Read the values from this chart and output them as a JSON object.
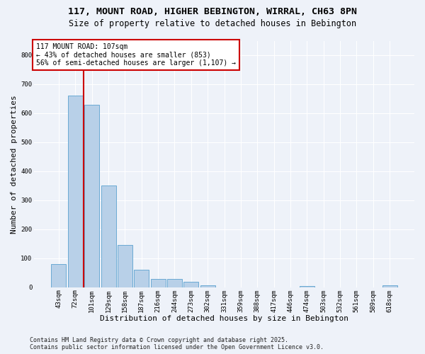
{
  "title_line1": "117, MOUNT ROAD, HIGHER BEBINGTON, WIRRAL, CH63 8PN",
  "title_line2": "Size of property relative to detached houses in Bebington",
  "xlabel": "Distribution of detached houses by size in Bebington",
  "ylabel": "Number of detached properties",
  "categories": [
    "43sqm",
    "72sqm",
    "101sqm",
    "129sqm",
    "158sqm",
    "187sqm",
    "216sqm",
    "244sqm",
    "273sqm",
    "302sqm",
    "331sqm",
    "359sqm",
    "388sqm",
    "417sqm",
    "446sqm",
    "474sqm",
    "503sqm",
    "532sqm",
    "561sqm",
    "589sqm",
    "618sqm"
  ],
  "values": [
    80,
    660,
    630,
    350,
    145,
    60,
    30,
    30,
    18,
    8,
    0,
    0,
    0,
    0,
    0,
    5,
    0,
    0,
    0,
    0,
    8
  ],
  "bar_color": "#b8d0e8",
  "bar_edge_color": "#6aaad4",
  "vline_x": 1.5,
  "annotation_text": "117 MOUNT ROAD: 107sqm\n← 43% of detached houses are smaller (853)\n56% of semi-detached houses are larger (1,107) →",
  "annotation_box_color": "#ffffff",
  "annotation_box_edge_color": "#cc0000",
  "vline_color": "#cc0000",
  "ylim": [
    0,
    850
  ],
  "yticks": [
    0,
    100,
    200,
    300,
    400,
    500,
    600,
    700,
    800
  ],
  "footer_line1": "Contains HM Land Registry data © Crown copyright and database right 2025.",
  "footer_line2": "Contains public sector information licensed under the Open Government Licence v3.0.",
  "bg_color": "#eef2f9",
  "grid_color": "#ffffff",
  "title_fontsize": 9.5,
  "subtitle_fontsize": 8.5,
  "label_fontsize": 8,
  "tick_fontsize": 6.5,
  "footer_fontsize": 6,
  "ann_fontsize": 7
}
